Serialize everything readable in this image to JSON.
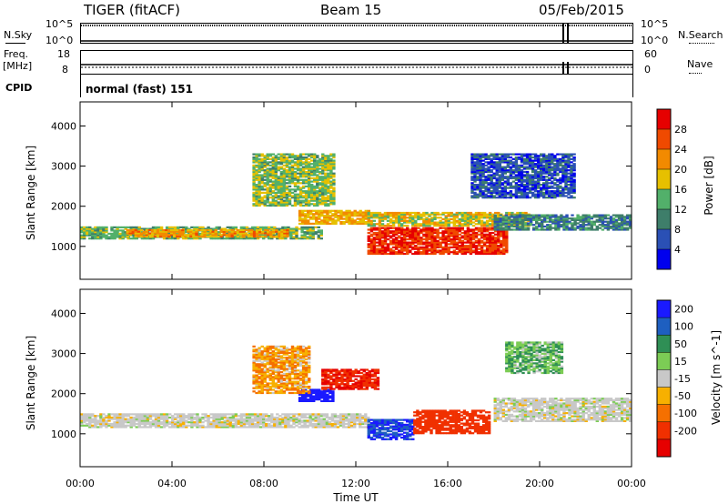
{
  "header": {
    "station": "TIGER (fitACF)",
    "beam": "Beam 15",
    "date": "05/Feb/2015"
  },
  "nsky_panel": {
    "left_label": "N.Sky",
    "left_ticks": [
      "10^5",
      "10^0"
    ],
    "right_label": "N.Search",
    "right_ticks": [
      "10^5",
      "10^0"
    ]
  },
  "freq_panel": {
    "left_label_1": "Freq.",
    "left_label_2": "[MHz]",
    "left_ticks": [
      "18",
      "8"
    ],
    "right_label": "Nave",
    "right_ticks": [
      "60",
      "0"
    ]
  },
  "cpid": {
    "label": "CPID",
    "text": "normal (fast) 151"
  },
  "colors": {
    "power_scale": [
      "#0000ee",
      "#2a50b5",
      "#3e7e6a",
      "#52b06a",
      "#e6c000",
      "#f28a00",
      "#f04a00",
      "#e60000"
    ],
    "velocity_scale": [
      "#1a1aff",
      "#1e5fc0",
      "#2f8f55",
      "#7ccc55",
      "#c8c8c8",
      "#f7b000",
      "#f57000",
      "#f03000",
      "#e60000"
    ]
  },
  "chart_data": [
    {
      "type": "heatmap",
      "title": "",
      "xlabel": "Time UT",
      "ylabel": "Slant Range [km]",
      "colorbar_label": "Power [dB]",
      "x_ticks": [
        "00:00",
        "04:00",
        "08:00",
        "12:00",
        "16:00",
        "20:00",
        "00:00"
      ],
      "xlim_hours": [
        0,
        24
      ],
      "y_ticks": [
        1000,
        2000,
        3000,
        4000
      ],
      "ylim_km": [
        180,
        4600
      ],
      "colorbar_ticks": [
        4,
        8,
        12,
        16,
        20,
        24,
        28
      ],
      "colorbar_range": [
        0,
        32
      ],
      "regions": [
        {
          "t0": 0.0,
          "t1": 10.5,
          "r0": 1180,
          "r1": 1480,
          "level": 14
        },
        {
          "t0": 2.0,
          "t1": 9.0,
          "r0": 1230,
          "r1": 1400,
          "level": 21
        },
        {
          "t0": 9.5,
          "t1": 12.5,
          "r0": 1550,
          "r1": 1900,
          "level": 20
        },
        {
          "t0": 12.5,
          "t1": 18.5,
          "r0": 800,
          "r1": 1450,
          "level": 28
        },
        {
          "t0": 12.5,
          "t1": 19.5,
          "r0": 1500,
          "r1": 1850,
          "level": 18
        },
        {
          "t0": 18.0,
          "t1": 24.0,
          "r0": 1400,
          "r1": 1800,
          "level": 10
        },
        {
          "t0": 7.5,
          "t1": 11.0,
          "r0": 2000,
          "r1": 3300,
          "level": 15
        },
        {
          "t0": 17.0,
          "t1": 21.5,
          "r0": 2200,
          "r1": 3300,
          "level": 6
        }
      ]
    },
    {
      "type": "heatmap",
      "title": "",
      "xlabel": "Time UT",
      "ylabel": "Slant Range [km]",
      "colorbar_label": "Velocity [m s^-1]",
      "x_ticks": [
        "00:00",
        "04:00",
        "08:00",
        "12:00",
        "16:00",
        "20:00",
        "00:00"
      ],
      "xlim_hours": [
        0,
        24
      ],
      "y_ticks": [
        1000,
        2000,
        3000,
        4000
      ],
      "ylim_km": [
        180,
        4600
      ],
      "colorbar_ticks": [
        200,
        100,
        50,
        15,
        -15,
        -50,
        -100,
        -200
      ],
      "regions": [
        {
          "t0": 0.0,
          "t1": 12.5,
          "r0": 1150,
          "r1": 1500,
          "velocity": 0
        },
        {
          "t0": 12.5,
          "t1": 14.5,
          "r0": 850,
          "r1": 1350,
          "velocity": 150
        },
        {
          "t0": 14.5,
          "t1": 17.8,
          "r0": 1000,
          "r1": 1600,
          "velocity": -100
        },
        {
          "t0": 9.5,
          "t1": 11.0,
          "r0": 1800,
          "r1": 2100,
          "velocity": 200
        },
        {
          "t0": 10.5,
          "t1": 13.0,
          "r0": 2100,
          "r1": 2600,
          "velocity": -150
        },
        {
          "t0": 7.5,
          "t1": 10.0,
          "r0": 2000,
          "r1": 3200,
          "velocity": -30
        },
        {
          "t0": 18.0,
          "t1": 24.0,
          "r0": 1300,
          "r1": 1900,
          "velocity": 0
        },
        {
          "t0": 18.5,
          "t1": 21.0,
          "r0": 2500,
          "r1": 3300,
          "velocity": 30
        }
      ]
    }
  ]
}
